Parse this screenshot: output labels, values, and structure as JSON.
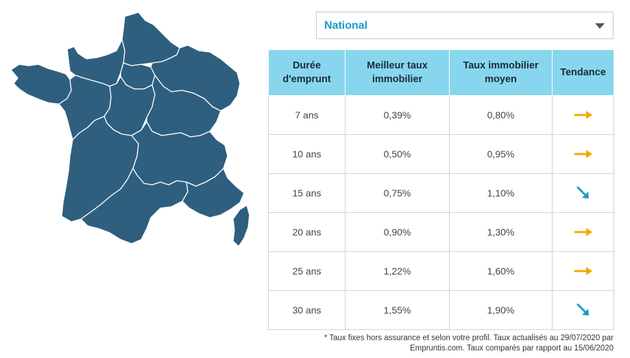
{
  "region_select": {
    "value": "National"
  },
  "table": {
    "headers": [
      "Durée d'emprunt",
      "Meilleur taux immobilier",
      "Taux immobilier moyen",
      "Tendance"
    ],
    "rows": [
      {
        "duree": "7 ans",
        "meilleur": "0,39%",
        "moyen": "0,80%",
        "tendance": "stable"
      },
      {
        "duree": "10 ans",
        "meilleur": "0,50%",
        "moyen": "0,95%",
        "tendance": "stable"
      },
      {
        "duree": "15 ans",
        "meilleur": "0,75%",
        "moyen": "1,10%",
        "tendance": "baisse"
      },
      {
        "duree": "20 ans",
        "meilleur": "0,90%",
        "moyen": "1,30%",
        "tendance": "stable"
      },
      {
        "duree": "25 ans",
        "meilleur": "1,22%",
        "moyen": "1,60%",
        "tendance": "stable"
      },
      {
        "duree": "30 ans",
        "meilleur": "1,55%",
        "moyen": "1,90%",
        "tendance": "baisse"
      }
    ]
  },
  "footnote": {
    "line1": "* Taux fixes hors assurance et selon votre profil. Taux actualisés au 29/07/2020 par",
    "line2": "Empruntis.com. Taux comparés par rapport au 15/06/2020"
  },
  "colors": {
    "map": "#2f5f7e",
    "stable_arrow": "#f5a800",
    "down_arrow": "#1a9bc4",
    "header_bg": "#87d6ee",
    "accent": "#1a9bc4"
  },
  "icons": {
    "stable": "arrow-right-icon",
    "baisse": "arrow-down-right-icon"
  }
}
